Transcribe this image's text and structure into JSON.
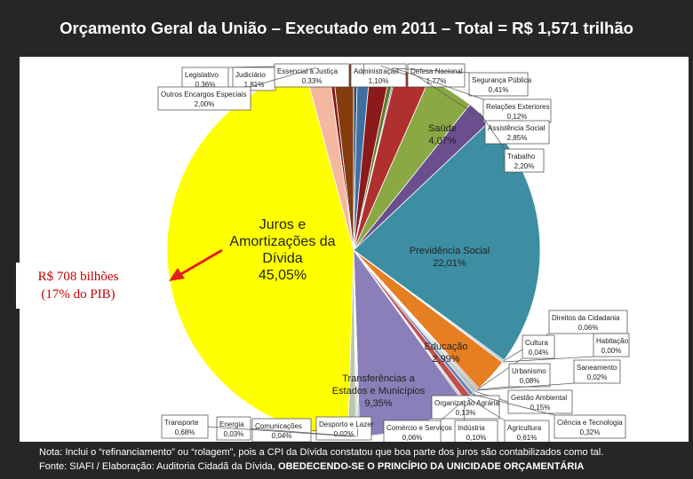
{
  "title": "Orçamento Geral da União – Executado em 2011 – Total = R$ 1,571 trilhão",
  "callout": {
    "line1": "R$ 708 bilhões",
    "line2": "(17%  do PIB)"
  },
  "note": {
    "line1": "Nota: Inclui o “refinanciamento” ou “rolagem”, pois a CPI da Dívida constatou que boa parte dos juros são contabilizados como tal.",
    "line2_prefix": "Fonte: SIAFI  /  Elaboração: Auditoria Cidadã da Dívida, ",
    "line2_strong": "OBEDECENDO-SE O PRINCÍPIO DA UNICIDADE ORÇAMENTÁRIA"
  },
  "colors": {
    "background": "#262626",
    "debt_callout_text": "#c00000",
    "arrow": "#e02020"
  },
  "chart_data": {
    "type": "pie",
    "title": "Orçamento Geral da União – Executado em 2011 – Total = R$ 1,571 trilhão",
    "unit": "%",
    "slices": [
      {
        "label": "Legislativo",
        "value_label": "0,36%",
        "value": 0.36,
        "color": "#7f1c1c"
      },
      {
        "label": "Judiciário",
        "value_label": "1,81%",
        "value": 1.81,
        "color": "#843c0c"
      },
      {
        "label": "Essencial à Justiça",
        "value_label": "0,33%",
        "value": 0.33,
        "color": "#2f4f6f"
      },
      {
        "label": "Administração",
        "value_label": "1,10%",
        "value": 1.1,
        "color": "#3f6fa0"
      },
      {
        "label": "Defesa Nacional",
        "value_label": "1,77%",
        "value": 1.77,
        "color": "#8b1a1a"
      },
      {
        "label": "Segurança Pública",
        "value_label": "0,41%",
        "value": 0.41,
        "color": "#5a7a2a"
      },
      {
        "label": "Relações Exteriores",
        "value_label": "0,12%",
        "value": 0.12,
        "color": "#5b3e82"
      },
      {
        "label": "Assistência Social",
        "value_label": "2,85%",
        "value": 2.85,
        "color": "#b03030"
      },
      {
        "label": "Saúde",
        "value_label": "4,07%",
        "value": 4.07,
        "color": "#8aa843"
      },
      {
        "label": "Trabalho",
        "value_label": "2,20%",
        "value": 2.2,
        "color": "#6a4e8e"
      },
      {
        "label": "Previdência Social",
        "value_label": "22,01%",
        "value": 22.01,
        "color": "#3d8ea3"
      },
      {
        "label": "Direitos da Cidadania",
        "value_label": "0,06%",
        "value": 0.06,
        "color": "#4a7fb8"
      },
      {
        "label": "Habitação",
        "value_label": "0,00%",
        "value": 0.0,
        "color": "#9a9a9a"
      },
      {
        "label": "Educação",
        "value_label": "2,99%",
        "value": 2.99,
        "color": "#e67e22"
      },
      {
        "label": "Cultura",
        "value_label": "0,04%",
        "value": 0.04,
        "color": "#a04040"
      },
      {
        "label": "Urbanismo",
        "value_label": "0,08%",
        "value": 0.08,
        "color": "#7a9a40"
      },
      {
        "label": "Saneamento",
        "value_label": "0,02%",
        "value": 0.02,
        "color": "#6040a0"
      },
      {
        "label": "Gestão Ambiental",
        "value_label": "0,15%",
        "value": 0.15,
        "color": "#40a0b0"
      },
      {
        "label": "Organização Agrária",
        "value_label": "0,13%",
        "value": 0.13,
        "color": "#e08a30"
      },
      {
        "label": "Ciência e Tecnologia",
        "value_label": "0,32%",
        "value": 0.32,
        "color": "#6080c0"
      },
      {
        "label": "Agricultura",
        "value_label": "0,61%",
        "value": 0.61,
        "color": "#c05050"
      },
      {
        "label": "Indústria",
        "value_label": "0,10%",
        "value": 0.1,
        "color": "#90b050"
      },
      {
        "label": "Comércio e Serviços",
        "value_label": "0,06%",
        "value": 0.06,
        "color": "#8060b0"
      },
      {
        "label": "Transferências a Estados e Municípios",
        "value_label": "9,35%",
        "value": 9.35,
        "color": "#8a7fb8"
      },
      {
        "label": "Comunicações",
        "value_label": "0,04%",
        "value": 0.04,
        "color": "#5090a0"
      },
      {
        "label": "Desporto e Lazer",
        "value_label": "0,02%",
        "value": 0.02,
        "color": "#e09040"
      },
      {
        "label": "Energia",
        "value_label": "0,03%",
        "value": 0.03,
        "color": "#7090c0"
      },
      {
        "label": "Transporte",
        "value_label": "0,68%",
        "value": 0.68,
        "color": "#b8c8b0"
      },
      {
        "label": "Juros e Amortizações da Dívida",
        "value_label": "45,05%",
        "value": 45.05,
        "color": "#ffff00"
      },
      {
        "label": "Outros Encargos Especiais",
        "value_label": "2,00%",
        "value": 2.0,
        "color": "#f4b8a0"
      }
    ]
  }
}
